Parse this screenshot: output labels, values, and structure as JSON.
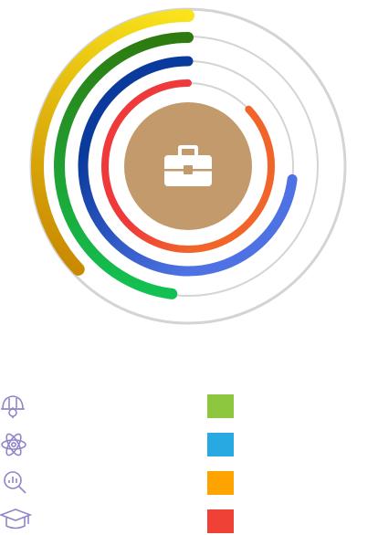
{
  "center": {
    "icon": "briefcase-icon",
    "fill": "#c29a6c",
    "icon_color": "#ffffff"
  },
  "track_color": "#d4d4d4",
  "rings": [
    {
      "name": "ring-outer",
      "icon": "helmet-gear-icon",
      "gradient_start": "#c98a00",
      "gradient_end": "#f9e31c",
      "fraction": 0.37
    },
    {
      "name": "ring-second",
      "icon": "atom-icon",
      "gradient_start": "#12c152",
      "gradient_end": "#2e7a0e",
      "fraction": 0.48
    },
    {
      "name": "ring-third",
      "icon": "magnifier-chart-icon",
      "gradient_start": "#4e72e3",
      "gradient_end": "#0a3a9c",
      "fraction": 0.73
    },
    {
      "name": "ring-inner",
      "icon": "graduation-cap-icon",
      "gradient_start": "#f1642a",
      "gradient_end": "#ee3a3a",
      "fraction": 0.87
    }
  ],
  "legend": [
    {
      "icon": "helmet-gear-icon",
      "color": "#8dc63f"
    },
    {
      "icon": "atom-icon",
      "color": "#29a9e1"
    },
    {
      "icon": "magnifier-chart-icon",
      "color": "#ffa300"
    },
    {
      "icon": "graduation-cap-icon",
      "color": "#ef4136"
    }
  ],
  "legend_icon_color": "#8f86c9"
}
